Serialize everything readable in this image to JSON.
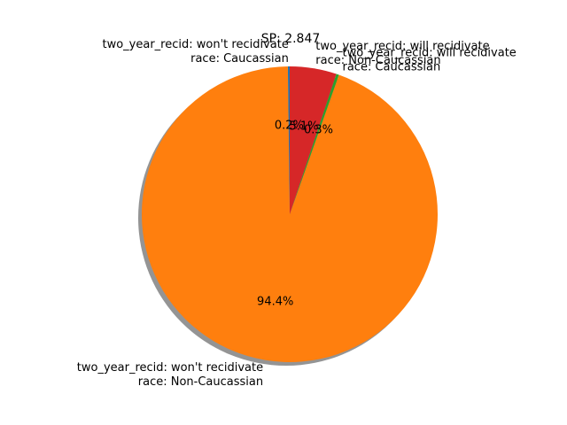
{
  "chart_data": {
    "type": "pie",
    "title": "SP: 2.847",
    "slices": [
      {
        "label_lines": [
          "two_year_recid: won't recidivate",
          "race: Caucassian"
        ],
        "pct_label": "0.2%",
        "value": 0.2,
        "color": "#1f77b4"
      },
      {
        "label_lines": [
          "two_year_recid: won't recidivate",
          "race: Non-Caucassian"
        ],
        "pct_label": "94.4%",
        "value": 94.4,
        "color": "#ff7f0e"
      },
      {
        "label_lines": [
          "two_year_recid: will recidivate",
          "race: Caucassian"
        ],
        "pct_label": "0.3%",
        "value": 0.3,
        "color": "#2ca02c"
      },
      {
        "label_lines": [
          "two_year_recid: will recidivate",
          "race: Non-Caucassian"
        ],
        "pct_label": "5.1%",
        "value": 5.1,
        "color": "#d62728"
      }
    ],
    "shadow": true
  }
}
